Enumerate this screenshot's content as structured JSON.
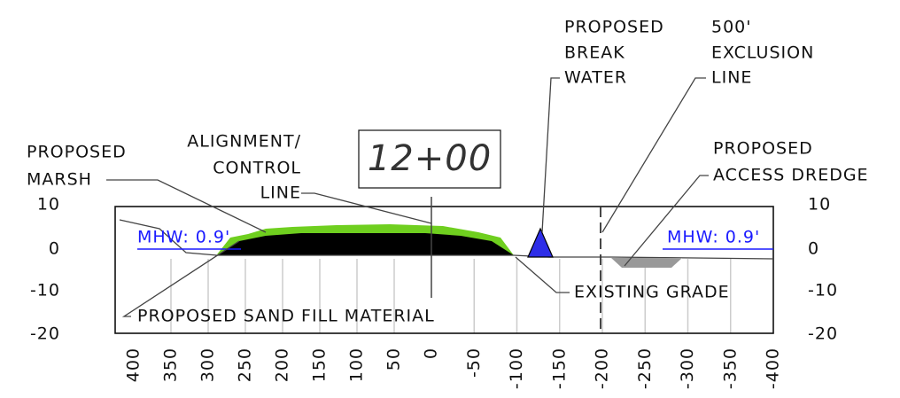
{
  "station": "12+00",
  "breakwater": [
    "PROPOSED",
    "BREAK",
    "WATER"
  ],
  "exclusion": [
    "500'",
    "EXCLUSION",
    "LINE"
  ],
  "marsh": [
    "PROPOSED",
    "MARSH"
  ],
  "alignment": [
    "ALIGNMENT/",
    "CONTROL",
    "LINE"
  ],
  "dredge": [
    "PROPOSED",
    "ACCESS DREDGE"
  ],
  "mhw_left": "MHW: 0.9'",
  "mhw_right": "MHW: 0.9'",
  "sand_fill": "PROPOSED SAND FILL MATERIAL",
  "existing_grade": "EXISTING GRADE",
  "y_ticks_left": [
    10,
    0,
    -10,
    -20
  ],
  "y_ticks_right": [
    10,
    0,
    -10,
    -20
  ],
  "x_ticks": [
    400,
    350,
    300,
    250,
    200,
    150,
    100,
    50,
    0,
    -50,
    -100,
    -150,
    -200,
    -250,
    -300,
    -350,
    -400
  ]
}
